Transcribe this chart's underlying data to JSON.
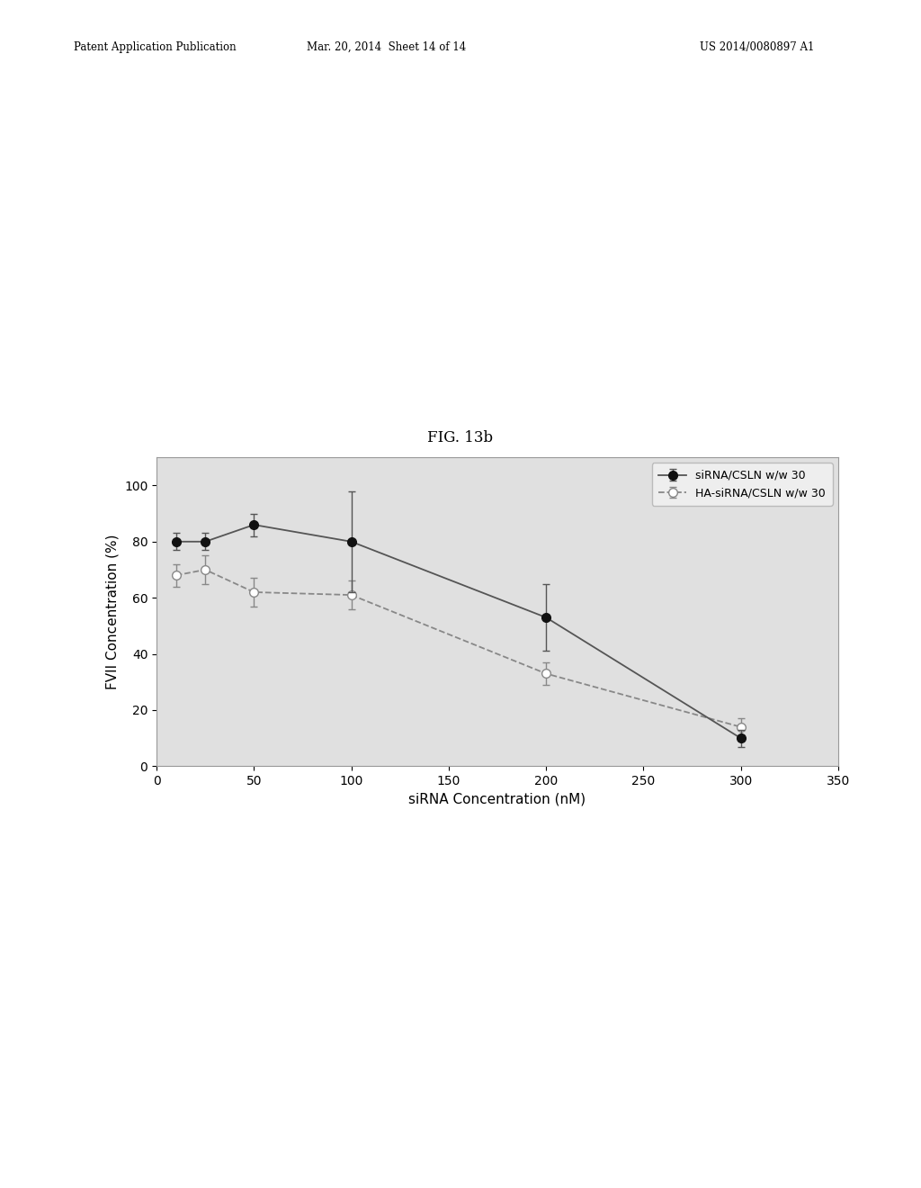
{
  "title": "FIG. 13b",
  "xlabel": "siRNA Concentration (nM)",
  "ylabel": "FVII Concentration (%)",
  "xlim": [
    0,
    350
  ],
  "ylim": [
    0,
    110
  ],
  "xticks": [
    0,
    50,
    100,
    150,
    200,
    250,
    300,
    350
  ],
  "yticks": [
    0,
    20,
    40,
    60,
    80,
    100
  ],
  "series1_label": "siRNA/CSLN w/w 30",
  "series2_label": "HA-siRNA/CSLN w/w 30",
  "series1_x": [
    10,
    25,
    50,
    100,
    200,
    300
  ],
  "series1_y": [
    80,
    80,
    86,
    80,
    53,
    10
  ],
  "series1_yerr": [
    3,
    3,
    4,
    18,
    12,
    3
  ],
  "series2_x": [
    10,
    25,
    50,
    100,
    200,
    300
  ],
  "series2_y": [
    68,
    70,
    62,
    61,
    33,
    14
  ],
  "series2_yerr": [
    4,
    5,
    5,
    5,
    4,
    3
  ],
  "line_color1": "#555555",
  "line_color2": "#888888",
  "marker_color1": "#111111",
  "marker_color2": "#ffffff",
  "background_color": "#ffffff",
  "plot_bg_color": "#e0e0e0",
  "title_fontsize": 12,
  "axis_fontsize": 11,
  "tick_fontsize": 10,
  "legend_fontsize": 9,
  "header_left": "Patent Application Publication",
  "header_mid": "Mar. 20, 2014  Sheet 14 of 14",
  "header_right": "US 2014/0080897 A1"
}
